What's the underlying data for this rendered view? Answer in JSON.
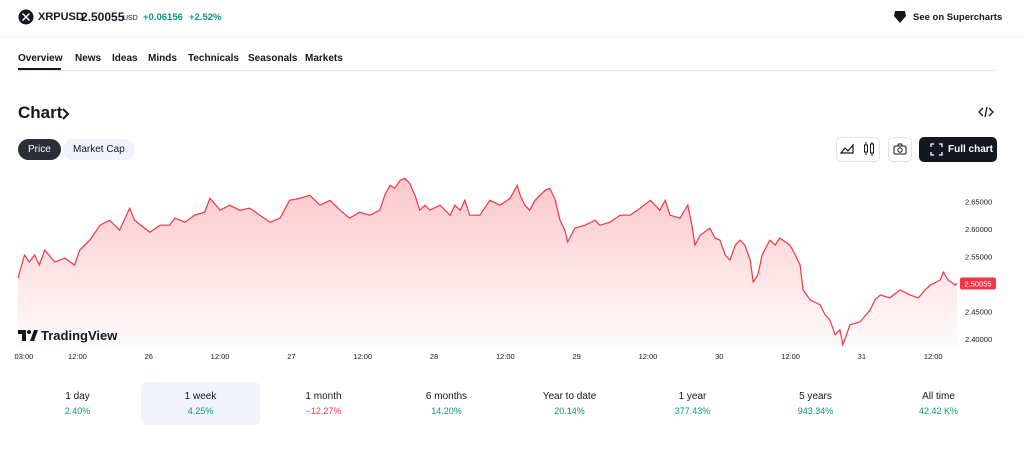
{
  "header": {
    "symbol": "XRPUSD",
    "price": "2.50055",
    "currency": "USD",
    "change": "+0.06156",
    "change_percent": "+2.52%",
    "link": "See on Supercharts"
  },
  "tabs": [
    "Overview",
    "News",
    "Ideas",
    "Minds",
    "Technicals",
    "Seasonals",
    "Markets"
  ],
  "section_title": "Chart",
  "toggles": [
    "Price",
    "Market Cap"
  ],
  "full_chart": "Full chart",
  "watermark": "TradingView",
  "chart_data": {
    "type": "line",
    "color": "#f23645",
    "xlim": [
      2,
      160
    ],
    "xticks": [
      {
        "value": 3,
        "label": "03:00"
      },
      {
        "value": 12,
        "label": "12:00"
      },
      {
        "value": 24,
        "label": "26"
      },
      {
        "value": 36,
        "label": "12:00"
      },
      {
        "value": 48,
        "label": "27"
      },
      {
        "value": 60,
        "label": "12:00"
      },
      {
        "value": 72,
        "label": "28"
      },
      {
        "value": 84,
        "label": "12:00"
      },
      {
        "value": 96,
        "label": "29"
      },
      {
        "value": 108,
        "label": "12:00"
      },
      {
        "value": 120,
        "label": "30"
      },
      {
        "value": 132,
        "label": "12:00"
      },
      {
        "value": 144,
        "label": "31"
      },
      {
        "value": 156,
        "label": "12:00"
      }
    ],
    "ylim": [
      2.385,
      2.705
    ],
    "yticks": [
      {
        "value": 2.4,
        "label": "2.40000"
      },
      {
        "value": 2.45,
        "label": "2.45000"
      },
      {
        "value": 2.5,
        "label": "2.50000"
      },
      {
        "value": 2.55,
        "label": "2.55000"
      },
      {
        "value": 2.6,
        "label": "2.60000"
      },
      {
        "value": 2.65,
        "label": "2.65000"
      }
    ],
    "x": [
      2.0,
      3.1,
      3.9,
      4.8,
      5.6,
      6.5,
      8.2,
      9.9,
      11.5,
      12.4,
      14.1,
      15.8,
      17.4,
      19.1,
      20.8,
      21.6,
      23.3,
      24.2,
      25.9,
      27.5,
      28.4,
      30.1,
      31.7,
      33.4,
      34.3,
      36.0,
      37.6,
      39.3,
      41.0,
      42.7,
      44.4,
      46.1,
      47.7,
      49.4,
      51.1,
      52.8,
      54.5,
      56.2,
      57.8,
      59.5,
      61.2,
      62.9,
      63.7,
      64.6,
      65.4,
      66.3,
      67.1,
      67.9,
      68.8,
      69.6,
      70.5,
      71.3,
      73.0,
      74.7,
      75.5,
      76.4,
      77.2,
      78.0,
      79.7,
      81.4,
      83.1,
      84.8,
      86.0,
      86.5,
      87.3,
      88.1,
      89.0,
      90.7,
      91.5,
      92.4,
      93.2,
      94.0,
      94.5,
      95.7,
      97.4,
      99.1,
      99.9,
      101.6,
      103.3,
      105.0,
      106.7,
      108.4,
      109.2,
      110.0,
      110.9,
      111.7,
      113.4,
      114.7,
      115.4,
      115.9,
      116.8,
      118.4,
      119.3,
      120.1,
      121.0,
      121.8,
      122.7,
      123.5,
      124.3,
      125.2,
      125.7,
      126.5,
      127.2,
      128.5,
      129.4,
      130.2,
      131.9,
      132.8,
      133.6,
      134.1,
      135.3,
      137.0,
      137.8,
      138.6,
      139.5,
      140.3,
      140.8,
      142.0,
      143.7,
      145.4,
      146.2,
      147.1,
      148.7,
      150.4,
      152.1,
      153.5,
      154.6,
      155.5,
      157.2,
      157.7,
      158.5,
      159.7,
      160.0
    ],
    "values": [
      2.5105,
      2.5522,
      2.5395,
      2.5522,
      2.534,
      2.5612,
      2.5395,
      2.5467,
      2.534,
      2.5612,
      2.5793,
      2.6065,
      2.6156,
      2.5975,
      2.6373,
      2.6156,
      2.6011,
      2.5938,
      2.6065,
      2.6065,
      2.6192,
      2.6119,
      2.6246,
      2.6301,
      2.6554,
      2.6337,
      2.6428,
      2.6337,
      2.6373,
      2.6246,
      2.6119,
      2.6192,
      2.6518,
      2.6554,
      2.6609,
      2.6428,
      2.6518,
      2.6337,
      2.6192,
      2.6301,
      2.6246,
      2.6337,
      2.6609,
      2.679,
      2.6736,
      2.6881,
      2.6917,
      2.6826,
      2.6609,
      2.6337,
      2.6428,
      2.6337,
      2.6428,
      2.6246,
      2.6428,
      2.6337,
      2.6518,
      2.6246,
      2.6246,
      2.6518,
      2.6428,
      2.6554,
      2.679,
      2.6609,
      2.6428,
      2.6337,
      2.6518,
      2.6699,
      2.6736,
      2.6518,
      2.6156,
      2.5975,
      2.5757,
      2.6011,
      2.6065,
      2.6156,
      2.6065,
      2.6119,
      2.6246,
      2.6246,
      2.6373,
      2.6518,
      2.6428,
      2.6337,
      2.6518,
      2.6246,
      2.6192,
      2.6428,
      2.6065,
      2.5703,
      2.5884,
      2.6011,
      2.583,
      2.5793,
      2.5522,
      2.5431,
      2.5703,
      2.5793,
      2.5703,
      2.5431,
      2.5032,
      2.5159,
      2.5522,
      2.5793,
      2.5703,
      2.583,
      2.5703,
      2.5522,
      2.534,
      2.4887,
      2.4706,
      2.4616,
      2.4434,
      2.4344,
      2.4072,
      2.4162,
      2.3891,
      2.4253,
      2.4307,
      2.4525,
      2.4706,
      2.4797,
      2.4742,
      2.4887,
      2.4797,
      2.4742,
      2.4887,
      2.4978,
      2.5069,
      2.5213,
      2.5069,
      2.4978,
      2.50055
    ]
  },
  "periods": [
    {
      "label": "1 day",
      "change": "2.40%"
    },
    {
      "label": "1 week",
      "change": "4.25%"
    },
    {
      "label": "1 month",
      "change": "−12.27%"
    },
    {
      "label": "6 months",
      "change": "14.20%"
    },
    {
      "label": "Year to date",
      "change": "20.14%"
    },
    {
      "label": "1 year",
      "change": "377.43%"
    },
    {
      "label": "5 years",
      "change": "943.34%"
    },
    {
      "label": "All time",
      "change": "42.42 K%"
    }
  ]
}
